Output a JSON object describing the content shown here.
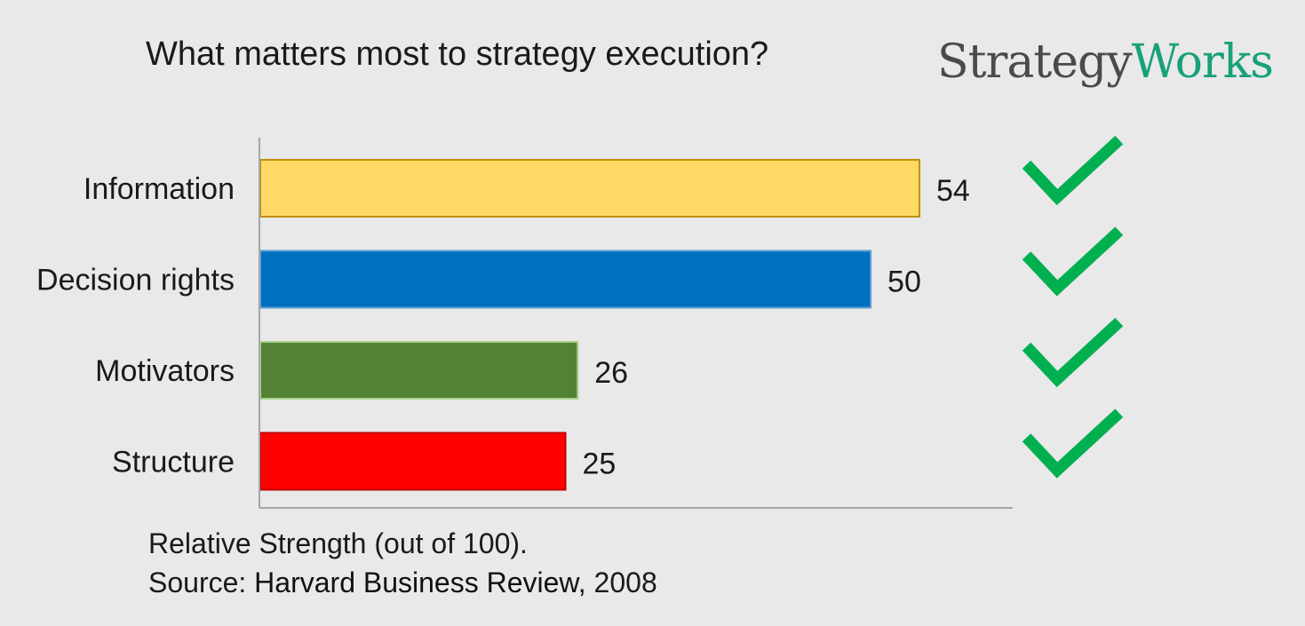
{
  "title": "What matters most to strategy execution?",
  "logo": {
    "part1": "Strategy",
    "part2": "Works"
  },
  "chart_data": {
    "type": "bar",
    "orientation": "horizontal",
    "categories": [
      "Information",
      "Decision rights",
      "Motivators",
      "Structure"
    ],
    "values": [
      54,
      50,
      26,
      25
    ],
    "colors": [
      "#ffd966",
      "#0070c0",
      "#548235",
      "#ff0000"
    ],
    "border_colors": [
      "#bf9000",
      "#5b9bd5",
      "#a9d18e",
      "#c00000"
    ],
    "xlim": [
      0,
      60
    ],
    "check_marks": [
      true,
      true,
      true,
      true
    ],
    "check_color": "#00b050",
    "xlabel": "",
    "ylabel": ""
  },
  "footer": {
    "line1": "Relative Strength (out of 100).",
    "source_prefix": "Source: ",
    "source_publication": "Harvard Business Review",
    "source_suffix": ", 2008"
  }
}
